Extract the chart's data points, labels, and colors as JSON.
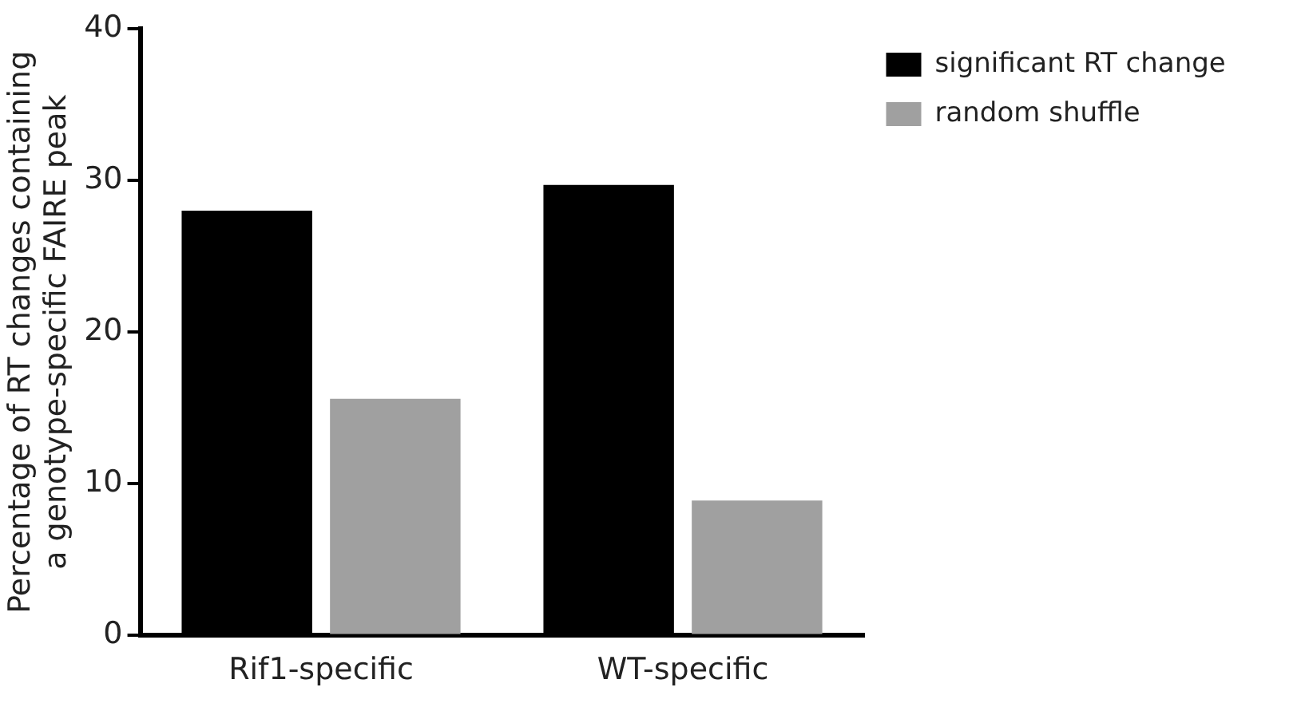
{
  "chart_data": {
    "type": "bar",
    "ylabel": "Percentage of RT changes containing\na genotype-specific FAIRE peak",
    "categories": [
      "Rif1-specific",
      "WT-specific"
    ],
    "series": [
      {
        "name": "significant RT change",
        "color": "#000000",
        "values": [
          28,
          29.7
        ]
      },
      {
        "name": "random shuffle",
        "color": "#a0a0a0",
        "values": [
          15.6,
          8.9
        ]
      }
    ],
    "ylim": [
      0,
      40
    ],
    "yticks": [
      0,
      10,
      20,
      30,
      40
    ],
    "grid": false,
    "legend": "top right"
  }
}
